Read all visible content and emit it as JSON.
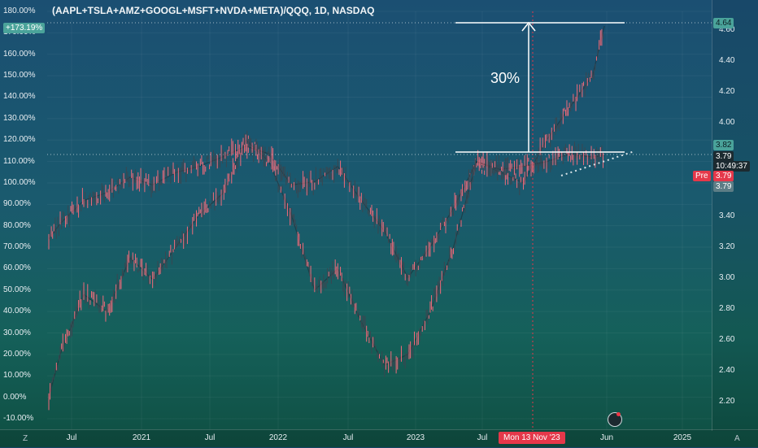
{
  "chart_data": {
    "type": "line",
    "title": "(AAPL+TSLA+AMZ+GOOGL+MSFT+NVDA+META)/QQQ, 1D, NASDAQ",
    "left_axis": {
      "ticks": [
        "180.00%",
        "170.00%",
        "160.00%",
        "150.00%",
        "140.00%",
        "130.00%",
        "120.00%",
        "110.00%",
        "100.00%",
        "90.00%",
        "80.00%",
        "70.00%",
        "60.00%",
        "50.00%",
        "40.00%",
        "30.00%",
        "20.00%",
        "10.00%",
        "0.00%",
        "-10.00%"
      ],
      "range": [
        -10,
        180
      ]
    },
    "right_axis": {
      "ticks": [
        "4.60",
        "4.40",
        "4.20",
        "4.00",
        "3.40",
        "3.20",
        "3.00",
        "2.80",
        "2.60",
        "2.40",
        "2.20"
      ],
      "range": [
        2.15,
        4.66
      ]
    },
    "x_axis": {
      "ticks": [
        "Jul",
        "2021",
        "Jul",
        "2022",
        "Jul",
        "2023",
        "Jul",
        "Jun",
        "2025"
      ]
    },
    "series": [
      {
        "name": "",
        "axis": "left",
        "x": [
          "2020-06",
          "2020-07",
          "2020-09",
          "2020-11",
          "2021-01",
          "2021-03",
          "2021-05",
          "2021-07",
          "2021-09",
          "2021-11",
          "2022-01",
          "2022-03",
          "2022-05",
          "2022-07",
          "2022-09",
          "2022-11",
          "2023-01",
          "2023-03",
          "2023-05",
          "2023-07",
          "2023-09",
          "2023-11",
          "2024-01",
          "2024-03",
          "2024-05",
          "2024-06"
        ],
        "values": [
          0,
          20,
          48,
          40,
          65,
          55,
          70,
          85,
          95,
          120,
          110,
          85,
          50,
          60,
          35,
          15,
          20,
          40,
          70,
          110,
          105,
          100,
          120,
          135,
          150,
          173.19
        ]
      },
      {
        "name": "",
        "axis": "right",
        "x": [
          "2020-06",
          "2020-07",
          "2020-09",
          "2020-11",
          "2021-01",
          "2021-03",
          "2021-05",
          "2021-07",
          "2021-09",
          "2021-11",
          "2022-01",
          "2022-03",
          "2022-05",
          "2022-07",
          "2022-09",
          "2022-11",
          "2023-01",
          "2023-03",
          "2023-05",
          "2023-07",
          "2023-09",
          "2023-11",
          "2024-01",
          "2024-03",
          "2024-05",
          "2024-06"
        ],
        "values": [
          3.25,
          3.35,
          3.5,
          3.55,
          3.65,
          3.6,
          3.68,
          3.72,
          3.78,
          3.85,
          3.8,
          3.6,
          3.62,
          3.72,
          3.5,
          3.3,
          3.0,
          3.2,
          3.45,
          3.75,
          3.7,
          3.72,
          3.75,
          3.8,
          3.78,
          3.79
        ]
      }
    ],
    "annotations": {
      "move_label": "30%",
      "crosshair_date": "Mon 13 Nov '23",
      "level_high": 4.64,
      "level_low": 3.82
    },
    "badges": {
      "left_value": "+173.19%",
      "right_top": "4.64",
      "right_level": "3.82",
      "right_price": "3.79",
      "right_timer": "10:49:37",
      "pre_label": "Pre",
      "pre_value": "3.79",
      "last_value": "3.79"
    },
    "grid": true
  },
  "colors": {
    "axis_text": "#e8eef2",
    "badge_teal": "#4aa39a",
    "badge_red": "#e5384a",
    "badge_dark": "#1c2a30",
    "line_white": "#ffffff",
    "candle_up": "#3a4650",
    "candle_down": "#f06a7a"
  },
  "corner_left": "Z",
  "corner_right": "A"
}
